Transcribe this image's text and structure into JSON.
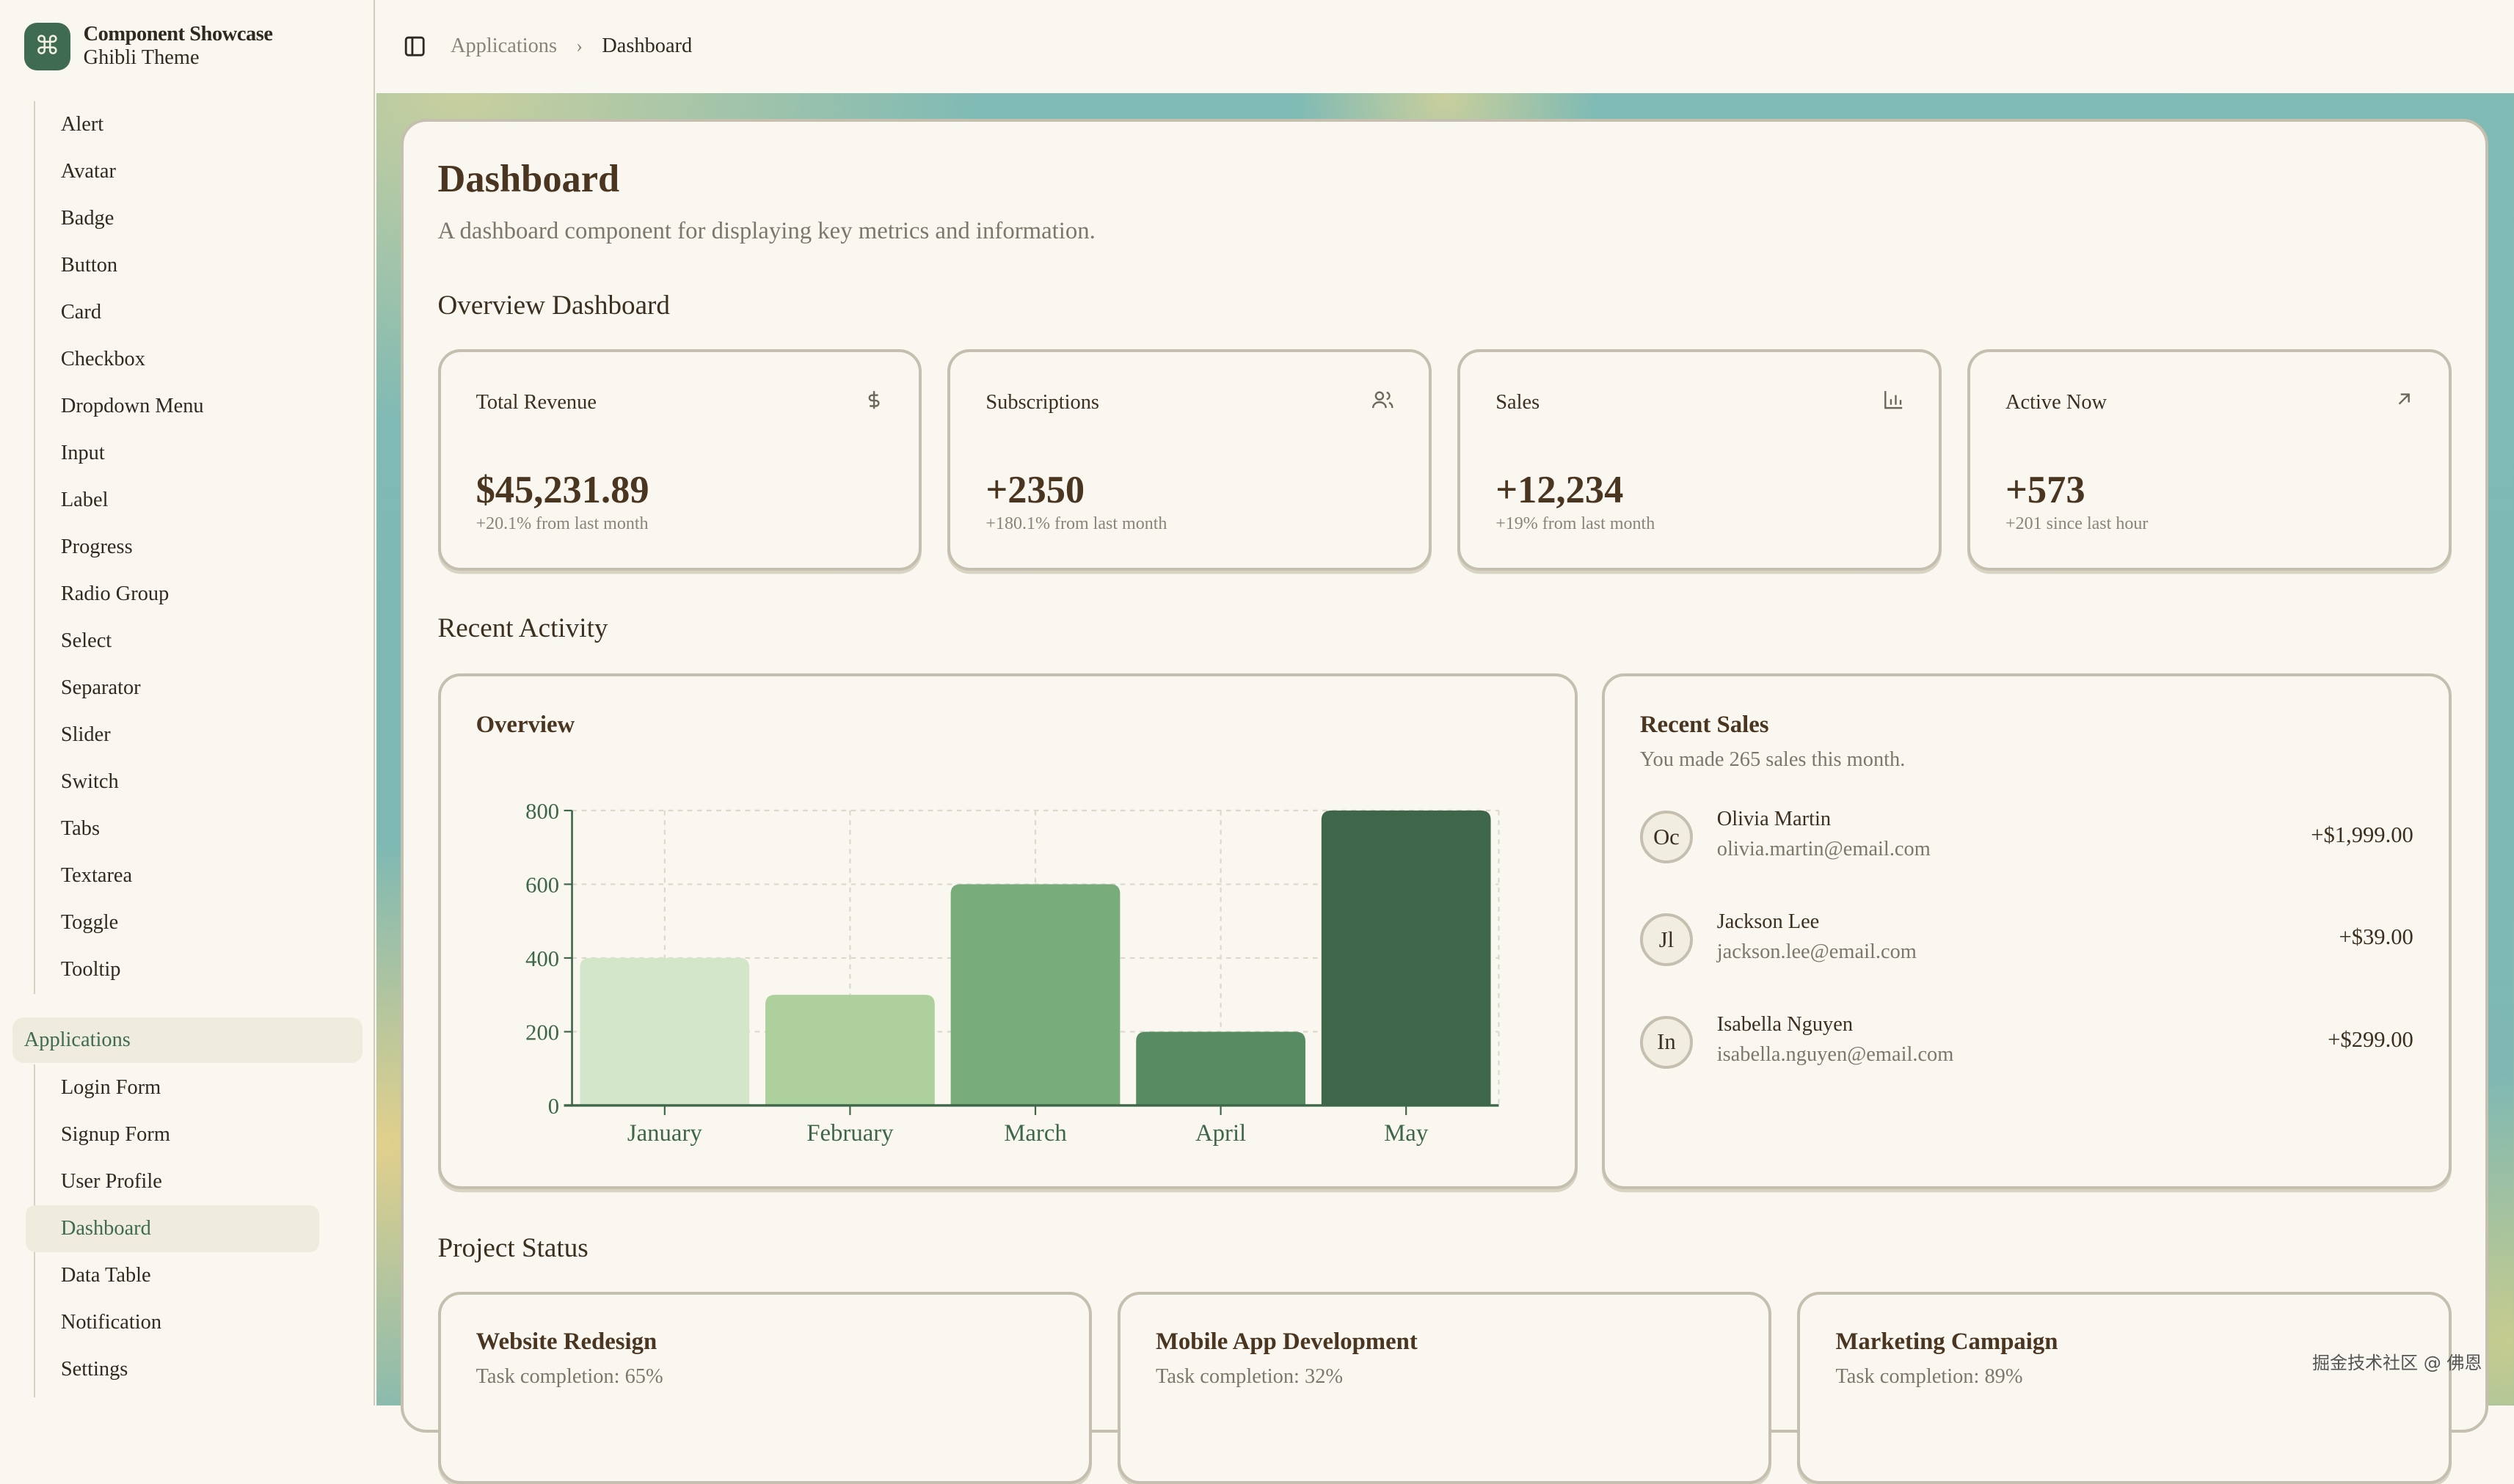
{
  "brand": {
    "title": "Component Showcase",
    "subtitle": "Ghibli Theme",
    "icon": "command-icon"
  },
  "sidebar": {
    "items": [
      "Alert",
      "Avatar",
      "Badge",
      "Button",
      "Card",
      "Checkbox",
      "Dropdown Menu",
      "Input",
      "Label",
      "Progress",
      "Radio Group",
      "Select",
      "Separator",
      "Slider",
      "Switch",
      "Tabs",
      "Textarea",
      "Toggle",
      "Tooltip"
    ],
    "group": "Applications",
    "group_items": [
      "Login Form",
      "Signup Form",
      "User Profile",
      "Dashboard",
      "Data Table",
      "Notification",
      "Settings"
    ],
    "active": "Dashboard"
  },
  "header": {
    "crumbs": [
      "Applications",
      "Dashboard"
    ]
  },
  "page": {
    "title": "Dashboard",
    "description": "A dashboard component for displaying key metrics and information.",
    "overview_heading": "Overview Dashboard",
    "activity_heading": "Recent Activity",
    "project_heading": "Project Status"
  },
  "stats": [
    {
      "title": "Total Revenue",
      "value": "$45,231.89",
      "sub": "+20.1% from last month",
      "icon": "dollar-icon"
    },
    {
      "title": "Subscriptions",
      "value": "+2350",
      "sub": "+180.1% from last month",
      "icon": "users-icon"
    },
    {
      "title": "Sales",
      "value": "+12,234",
      "sub": "+19% from last month",
      "icon": "bar-chart-icon"
    },
    {
      "title": "Active Now",
      "value": "+573",
      "sub": "+201 since last hour",
      "icon": "arrow-up-right-icon"
    }
  ],
  "overview": {
    "title": "Overview"
  },
  "chart_data": {
    "type": "bar",
    "categories": [
      "January",
      "February",
      "March",
      "April",
      "May"
    ],
    "values": [
      400,
      300,
      600,
      200,
      800
    ],
    "ylim": [
      0,
      800
    ],
    "yticks": [
      "0",
      "200",
      "400",
      "600",
      "800"
    ],
    "grid": true,
    "colors": [
      "#d4e6ca",
      "#add09c",
      "#78ac7b",
      "#578c62",
      "#3d6748"
    ]
  },
  "recent_sales": {
    "title": "Recent Sales",
    "subtitle": "You made 265 sales this month.",
    "items": [
      {
        "initials": "Oc",
        "name": "Olivia Martin",
        "email": "olivia.martin@email.com",
        "amount": "+$1,999.00"
      },
      {
        "initials": "Jl",
        "name": "Jackson Lee",
        "email": "jackson.lee@email.com",
        "amount": "+$39.00"
      },
      {
        "initials": "In",
        "name": "Isabella Nguyen",
        "email": "isabella.nguyen@email.com",
        "amount": "+$299.00"
      }
    ]
  },
  "projects": [
    {
      "title": "Website Redesign",
      "sub": "Task completion: 65%",
      "progress": 65
    },
    {
      "title": "Mobile App Development",
      "sub": "Task completion: 32%",
      "progress": 32
    },
    {
      "title": "Marketing Campaign",
      "sub": "Task completion: 89%",
      "progress": 89
    }
  ],
  "watermark": "掘金技术社区 @ 佛恩"
}
